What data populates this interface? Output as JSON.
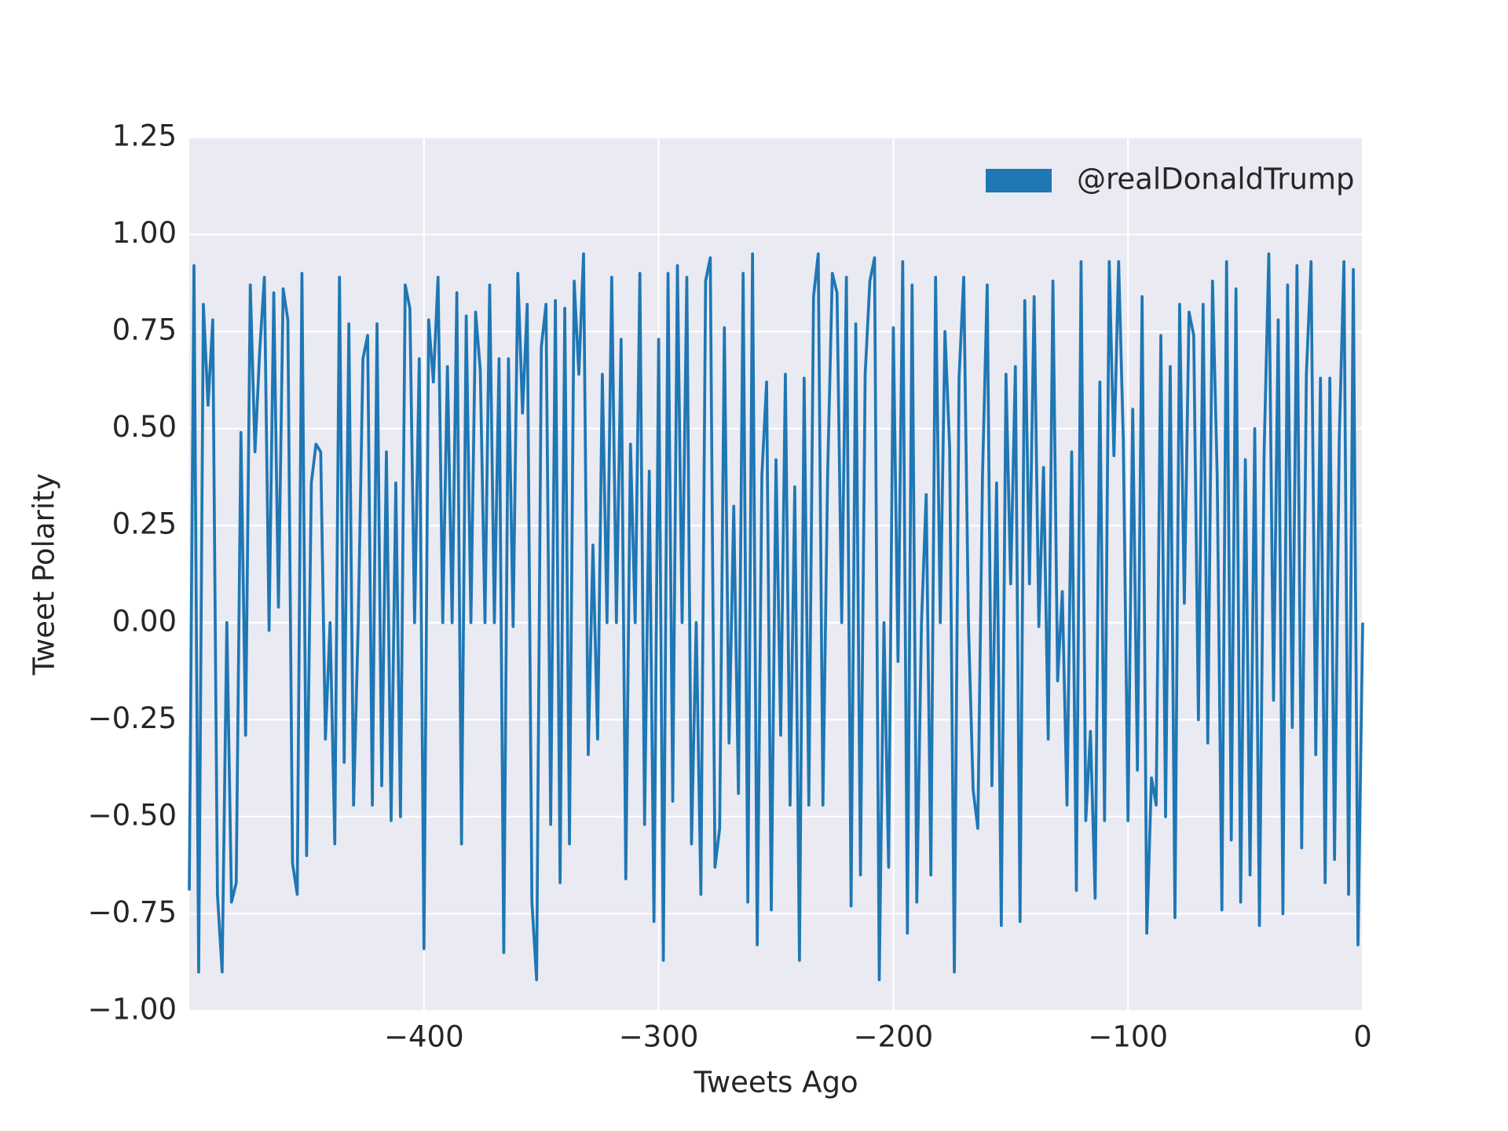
{
  "chart_data": {
    "type": "line",
    "xlabel": "Tweets Ago",
    "ylabel": "Tweet Polarity",
    "x": [
      -500,
      -498,
      -496,
      -494,
      -492,
      -490,
      -488,
      -486,
      -484,
      -482,
      -480,
      -478,
      -476,
      -474,
      -472,
      -470,
      -468,
      -466,
      -464,
      -462,
      -460,
      -458,
      -456,
      -454,
      -452,
      -450,
      -448,
      -446,
      -444,
      -442,
      -440,
      -438,
      -436,
      -434,
      -432,
      -430,
      -428,
      -426,
      -424,
      -422,
      -420,
      -418,
      -416,
      -414,
      -412,
      -410,
      -408,
      -406,
      -404,
      -402,
      -400,
      -398,
      -396,
      -394,
      -392,
      -390,
      -388,
      -386,
      -384,
      -382,
      -380,
      -378,
      -376,
      -374,
      -372,
      -370,
      -368,
      -366,
      -364,
      -362,
      -360,
      -358,
      -356,
      -354,
      -352,
      -350,
      -348,
      -346,
      -344,
      -342,
      -340,
      -338,
      -336,
      -334,
      -332,
      -330,
      -328,
      -326,
      -324,
      -322,
      -320,
      -318,
      -316,
      -314,
      -312,
      -310,
      -308,
      -306,
      -304,
      -302,
      -300,
      -298,
      -296,
      -294,
      -292,
      -290,
      -288,
      -286,
      -284,
      -282,
      -280,
      -278,
      -276,
      -274,
      -272,
      -270,
      -268,
      -266,
      -264,
      -262,
      -260,
      -258,
      -256,
      -254,
      -252,
      -250,
      -248,
      -246,
      -244,
      -242,
      -240,
      -238,
      -236,
      -234,
      -232,
      -230,
      -228,
      -226,
      -224,
      -222,
      -220,
      -218,
      -216,
      -214,
      -212,
      -210,
      -208,
      -206,
      -204,
      -202,
      -200,
      -198,
      -196,
      -194,
      -192,
      -190,
      -188,
      -186,
      -184,
      -182,
      -180,
      -178,
      -176,
      -174,
      -172,
      -170,
      -168,
      -166,
      -164,
      -162,
      -160,
      -158,
      -156,
      -154,
      -152,
      -150,
      -148,
      -146,
      -144,
      -142,
      -140,
      -138,
      -136,
      -134,
      -132,
      -130,
      -128,
      -126,
      -124,
      -122,
      -120,
      -118,
      -116,
      -114,
      -112,
      -110,
      -108,
      -106,
      -104,
      -102,
      -100,
      -98,
      -96,
      -94,
      -92,
      -90,
      -88,
      -86,
      -84,
      -82,
      -80,
      -78,
      -76,
      -74,
      -72,
      -70,
      -68,
      -66,
      -64,
      -62,
      -60,
      -58,
      -56,
      -54,
      -52,
      -50,
      -48,
      -46,
      -44,
      -42,
      -40,
      -38,
      -36,
      -34,
      -32,
      -30,
      -28,
      -26,
      -24,
      -22,
      -20,
      -18,
      -16,
      -14,
      -12,
      -10,
      -8,
      -6,
      -4,
      -2,
      0
    ],
    "series": [
      {
        "name": "@realDonaldTrump",
        "color": "#1f77b4",
        "values": [
          -0.69,
          0.92,
          -0.9,
          0.82,
          0.56,
          0.78,
          -0.7,
          -0.9,
          0,
          -0.72,
          -0.67,
          0.49,
          -0.29,
          0.87,
          0.44,
          0.7,
          0.89,
          -0.02,
          0.85,
          0.04,
          0.86,
          0.78,
          -0.62,
          -0.7,
          0.9,
          -0.6,
          0.36,
          0.46,
          0.44,
          -0.3,
          0,
          -0.57,
          0.89,
          -0.36,
          0.77,
          -0.47,
          0,
          0.68,
          0.74,
          -0.47,
          0.77,
          -0.42,
          0.44,
          -0.51,
          0.36,
          -0.5,
          0.87,
          0.81,
          0,
          0.68,
          -0.84,
          0.78,
          0.62,
          0.89,
          0,
          0.66,
          0,
          0.85,
          -0.57,
          0.79,
          0,
          0.8,
          0.65,
          0,
          0.87,
          0,
          0.68,
          -0.85,
          0.68,
          -0.01,
          0.9,
          0.54,
          0.82,
          -0.72,
          -0.92,
          0.71,
          0.82,
          -0.52,
          0.83,
          -0.67,
          0.81,
          -0.57,
          0.88,
          0.64,
          0.95,
          -0.34,
          0.2,
          -0.3,
          0.64,
          0,
          0.89,
          0,
          0.73,
          -0.66,
          0.46,
          0,
          0.9,
          -0.52,
          0.39,
          -0.77,
          0.73,
          -0.87,
          0.9,
          -0.46,
          0.92,
          0,
          0.89,
          -0.57,
          0,
          -0.7,
          0.88,
          0.94,
          -0.63,
          -0.53,
          0.76,
          -0.31,
          0.3,
          -0.44,
          0.9,
          -0.72,
          0.95,
          -0.83,
          0.38,
          0.62,
          -0.74,
          0.42,
          -0.29,
          0.64,
          -0.47,
          0.35,
          -0.87,
          0.63,
          -0.47,
          0.84,
          0.95,
          -0.47,
          0.38,
          0.9,
          0.85,
          0,
          0.89,
          -0.73,
          0.77,
          -0.65,
          0.64,
          0.88,
          0.94,
          -0.92,
          0,
          -0.63,
          0.76,
          -0.1,
          0.93,
          -0.8,
          0.87,
          -0.72,
          0,
          0.33,
          -0.65,
          0.89,
          0,
          0.75,
          0.45,
          -0.9,
          0.63,
          0.89,
          0,
          -0.43,
          -0.53,
          0.38,
          0.87,
          -0.42,
          0.36,
          -0.78,
          0.64,
          0.1,
          0.66,
          -0.77,
          0.83,
          0.1,
          0.84,
          -0.01,
          0.4,
          -0.3,
          0.88,
          -0.15,
          0.08,
          -0.47,
          0.44,
          -0.69,
          0.93,
          -0.51,
          -0.28,
          -0.71,
          0.62,
          -0.51,
          0.93,
          0.43,
          0.93,
          0.47,
          -0.51,
          0.55,
          -0.38,
          0.84,
          -0.8,
          -0.4,
          -0.47,
          0.74,
          -0.5,
          0.66,
          -0.76,
          0.82,
          0.05,
          0.8,
          0.74,
          -0.25,
          0.82,
          -0.31,
          0.88,
          0.38,
          -0.74,
          0.93,
          -0.56,
          0.86,
          -0.72,
          0.42,
          -0.65,
          0.5,
          -0.78,
          0.44,
          0.95,
          -0.2,
          0.78,
          -0.75,
          0.87,
          -0.27,
          0.92,
          -0.58,
          0.64,
          0.93,
          -0.34,
          0.63,
          -0.67,
          0.63,
          -0.61,
          0.47,
          0.93,
          -0.7,
          0.91,
          -0.83,
          0
        ]
      }
    ],
    "xlim": [
      -500,
      0
    ],
    "ylim": [
      -1,
      1.25
    ],
    "xticks": [
      {
        "value": -400,
        "label": "−400"
      },
      {
        "value": -300,
        "label": "−300"
      },
      {
        "value": -200,
        "label": "−200"
      },
      {
        "value": -100,
        "label": "−100"
      },
      0
    ],
    "yticks": [
      {
        "value": -1,
        "label": "−1.00"
      },
      {
        "value": -0.75,
        "label": "−0.75"
      },
      {
        "value": -0.5,
        "label": "−0.50"
      },
      {
        "value": -0.25,
        "label": "−0.25"
      },
      {
        "value": 0,
        "label": "0.00"
      },
      0.25,
      {
        "value": 0.5,
        "label": "0.50"
      },
      0.75,
      {
        "value": 1,
        "label": "1.00"
      },
      1.25
    ],
    "grid": true,
    "legend": "upper right"
  }
}
